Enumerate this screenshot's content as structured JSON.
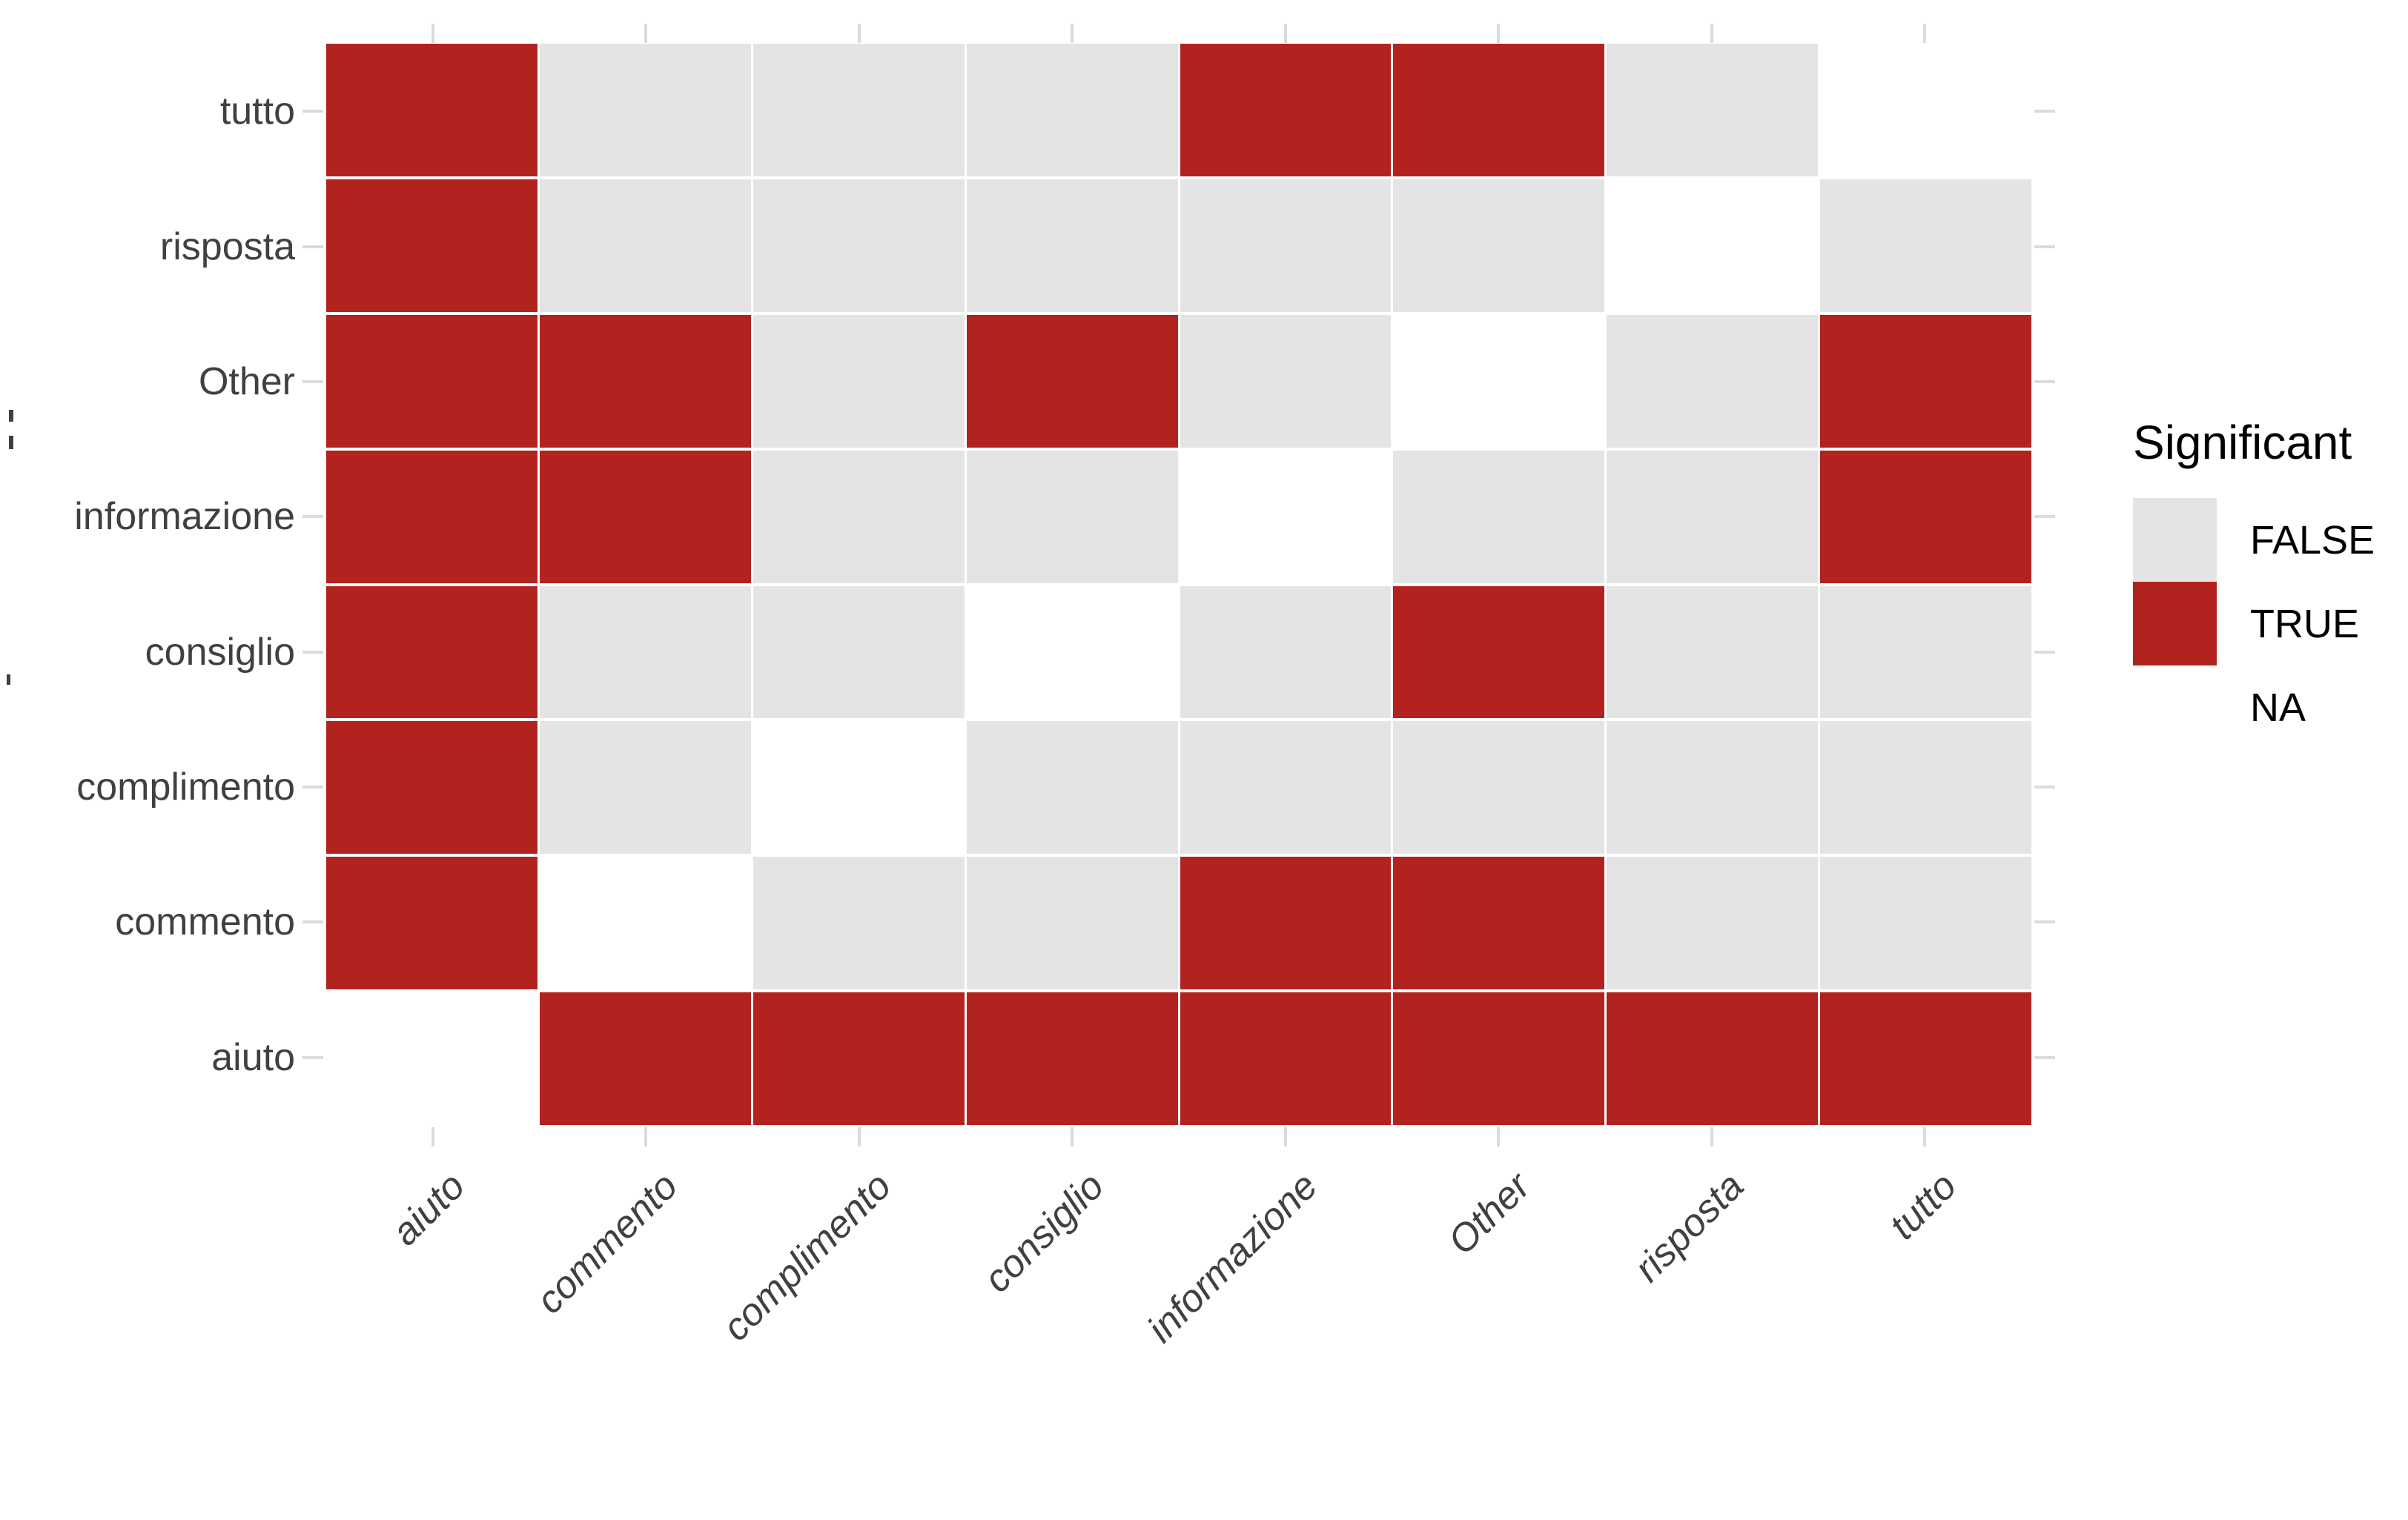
{
  "chart_data": {
    "type": "heatmap",
    "title": "",
    "x_categories": [
      "aiuto",
      "commento",
      "complimento",
      "consiglio",
      "informazione",
      "Other",
      "risposta",
      "tutto"
    ],
    "y_categories_top_to_bottom": [
      "tutto",
      "risposta",
      "Other",
      "informazione",
      "consiglio",
      "complimento",
      "commento",
      "aiuto"
    ],
    "matrix_rows_top_to_bottom": [
      [
        "TRUE",
        "FALSE",
        "FALSE",
        "FALSE",
        "TRUE",
        "TRUE",
        "FALSE",
        "NA"
      ],
      [
        "TRUE",
        "FALSE",
        "FALSE",
        "FALSE",
        "FALSE",
        "FALSE",
        "NA",
        "FALSE"
      ],
      [
        "TRUE",
        "TRUE",
        "FALSE",
        "TRUE",
        "FALSE",
        "NA",
        "FALSE",
        "TRUE"
      ],
      [
        "TRUE",
        "TRUE",
        "FALSE",
        "FALSE",
        "NA",
        "FALSE",
        "FALSE",
        "TRUE"
      ],
      [
        "TRUE",
        "FALSE",
        "FALSE",
        "NA",
        "FALSE",
        "TRUE",
        "FALSE",
        "FALSE"
      ],
      [
        "TRUE",
        "FALSE",
        "NA",
        "FALSE",
        "FALSE",
        "FALSE",
        "FALSE",
        "FALSE"
      ],
      [
        "TRUE",
        "NA",
        "FALSE",
        "FALSE",
        "TRUE",
        "TRUE",
        "FALSE",
        "FALSE"
      ],
      [
        "NA",
        "TRUE",
        "TRUE",
        "TRUE",
        "TRUE",
        "TRUE",
        "TRUE",
        "TRUE"
      ]
    ],
    "colors": {
      "TRUE": "#B2231F",
      "FALSE": "#E4E4E4",
      "NA": "#FFFFFF"
    },
    "legend": {
      "title": "Significant",
      "position": "right",
      "entries": [
        {
          "label": "FALSE",
          "value": "FALSE"
        },
        {
          "label": "TRUE",
          "value": "TRUE"
        },
        {
          "label": "NA",
          "value": "NA"
        }
      ]
    },
    "layout": {
      "grid_ticks_all_sides": true,
      "x_label_angle_deg": 45,
      "x_label_style": "italic",
      "background": "#FFFFFF",
      "tick_color": "#DBDBDB",
      "axis_text_color": "#404040"
    }
  }
}
